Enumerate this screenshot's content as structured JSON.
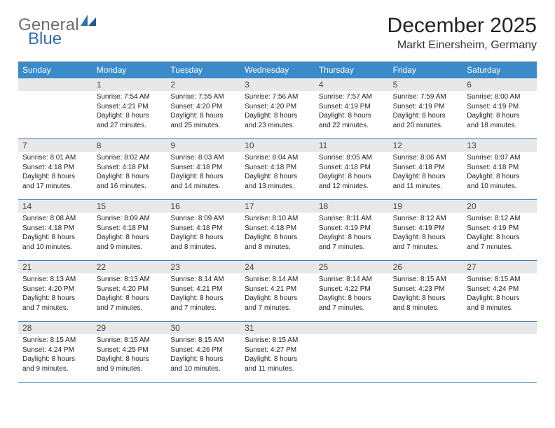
{
  "brand": {
    "t1": "General",
    "t2": "Blue"
  },
  "title": "December 2025",
  "location": "Markt Einersheim, Germany",
  "colors": {
    "header_bg": "#3b8bca",
    "header_text": "#ffffff",
    "week_border": "#407bb5",
    "daynum_bg": "#e8e8e8",
    "logo_gray": "#6d6e71",
    "logo_blue": "#2f6fb3",
    "page_bg": "#ffffff",
    "text": "#222222"
  },
  "fonts": {
    "title_pt": 30,
    "location_pt": 16,
    "dayheader_pt": 12,
    "body_pt": 10
  },
  "day_names": [
    "Sunday",
    "Monday",
    "Tuesday",
    "Wednesday",
    "Thursday",
    "Friday",
    "Saturday"
  ],
  "weeks": [
    [
      {
        "n": "",
        "sr": "",
        "ss": "",
        "dl1": "",
        "dl2": ""
      },
      {
        "n": "1",
        "sr": "7:54 AM",
        "ss": "4:21 PM",
        "dl1": "Daylight: 8 hours",
        "dl2": "and 27 minutes."
      },
      {
        "n": "2",
        "sr": "7:55 AM",
        "ss": "4:20 PM",
        "dl1": "Daylight: 8 hours",
        "dl2": "and 25 minutes."
      },
      {
        "n": "3",
        "sr": "7:56 AM",
        "ss": "4:20 PM",
        "dl1": "Daylight: 8 hours",
        "dl2": "and 23 minutes."
      },
      {
        "n": "4",
        "sr": "7:57 AM",
        "ss": "4:19 PM",
        "dl1": "Daylight: 8 hours",
        "dl2": "and 22 minutes."
      },
      {
        "n": "5",
        "sr": "7:59 AM",
        "ss": "4:19 PM",
        "dl1": "Daylight: 8 hours",
        "dl2": "and 20 minutes."
      },
      {
        "n": "6",
        "sr": "8:00 AM",
        "ss": "4:19 PM",
        "dl1": "Daylight: 8 hours",
        "dl2": "and 18 minutes."
      }
    ],
    [
      {
        "n": "7",
        "sr": "8:01 AM",
        "ss": "4:18 PM",
        "dl1": "Daylight: 8 hours",
        "dl2": "and 17 minutes."
      },
      {
        "n": "8",
        "sr": "8:02 AM",
        "ss": "4:18 PM",
        "dl1": "Daylight: 8 hours",
        "dl2": "and 16 minutes."
      },
      {
        "n": "9",
        "sr": "8:03 AM",
        "ss": "4:18 PM",
        "dl1": "Daylight: 8 hours",
        "dl2": "and 14 minutes."
      },
      {
        "n": "10",
        "sr": "8:04 AM",
        "ss": "4:18 PM",
        "dl1": "Daylight: 8 hours",
        "dl2": "and 13 minutes."
      },
      {
        "n": "11",
        "sr": "8:05 AM",
        "ss": "4:18 PM",
        "dl1": "Daylight: 8 hours",
        "dl2": "and 12 minutes."
      },
      {
        "n": "12",
        "sr": "8:06 AM",
        "ss": "4:18 PM",
        "dl1": "Daylight: 8 hours",
        "dl2": "and 11 minutes."
      },
      {
        "n": "13",
        "sr": "8:07 AM",
        "ss": "4:18 PM",
        "dl1": "Daylight: 8 hours",
        "dl2": "and 10 minutes."
      }
    ],
    [
      {
        "n": "14",
        "sr": "8:08 AM",
        "ss": "4:18 PM",
        "dl1": "Daylight: 8 hours",
        "dl2": "and 10 minutes."
      },
      {
        "n": "15",
        "sr": "8:09 AM",
        "ss": "4:18 PM",
        "dl1": "Daylight: 8 hours",
        "dl2": "and 9 minutes."
      },
      {
        "n": "16",
        "sr": "8:09 AM",
        "ss": "4:18 PM",
        "dl1": "Daylight: 8 hours",
        "dl2": "and 8 minutes."
      },
      {
        "n": "17",
        "sr": "8:10 AM",
        "ss": "4:18 PM",
        "dl1": "Daylight: 8 hours",
        "dl2": "and 8 minutes."
      },
      {
        "n": "18",
        "sr": "8:11 AM",
        "ss": "4:19 PM",
        "dl1": "Daylight: 8 hours",
        "dl2": "and 7 minutes."
      },
      {
        "n": "19",
        "sr": "8:12 AM",
        "ss": "4:19 PM",
        "dl1": "Daylight: 8 hours",
        "dl2": "and 7 minutes."
      },
      {
        "n": "20",
        "sr": "8:12 AM",
        "ss": "4:19 PM",
        "dl1": "Daylight: 8 hours",
        "dl2": "and 7 minutes."
      }
    ],
    [
      {
        "n": "21",
        "sr": "8:13 AM",
        "ss": "4:20 PM",
        "dl1": "Daylight: 8 hours",
        "dl2": "and 7 minutes."
      },
      {
        "n": "22",
        "sr": "8:13 AM",
        "ss": "4:20 PM",
        "dl1": "Daylight: 8 hours",
        "dl2": "and 7 minutes."
      },
      {
        "n": "23",
        "sr": "8:14 AM",
        "ss": "4:21 PM",
        "dl1": "Daylight: 8 hours",
        "dl2": "and 7 minutes."
      },
      {
        "n": "24",
        "sr": "8:14 AM",
        "ss": "4:21 PM",
        "dl1": "Daylight: 8 hours",
        "dl2": "and 7 minutes."
      },
      {
        "n": "25",
        "sr": "8:14 AM",
        "ss": "4:22 PM",
        "dl1": "Daylight: 8 hours",
        "dl2": "and 7 minutes."
      },
      {
        "n": "26",
        "sr": "8:15 AM",
        "ss": "4:23 PM",
        "dl1": "Daylight: 8 hours",
        "dl2": "and 8 minutes."
      },
      {
        "n": "27",
        "sr": "8:15 AM",
        "ss": "4:24 PM",
        "dl1": "Daylight: 8 hours",
        "dl2": "and 8 minutes."
      }
    ],
    [
      {
        "n": "28",
        "sr": "8:15 AM",
        "ss": "4:24 PM",
        "dl1": "Daylight: 8 hours",
        "dl2": "and 9 minutes."
      },
      {
        "n": "29",
        "sr": "8:15 AM",
        "ss": "4:25 PM",
        "dl1": "Daylight: 8 hours",
        "dl2": "and 9 minutes."
      },
      {
        "n": "30",
        "sr": "8:15 AM",
        "ss": "4:26 PM",
        "dl1": "Daylight: 8 hours",
        "dl2": "and 10 minutes."
      },
      {
        "n": "31",
        "sr": "8:15 AM",
        "ss": "4:27 PM",
        "dl1": "Daylight: 8 hours",
        "dl2": "and 11 minutes."
      },
      {
        "n": "",
        "sr": "",
        "ss": "",
        "dl1": "",
        "dl2": ""
      },
      {
        "n": "",
        "sr": "",
        "ss": "",
        "dl1": "",
        "dl2": ""
      },
      {
        "n": "",
        "sr": "",
        "ss": "",
        "dl1": "",
        "dl2": ""
      }
    ]
  ]
}
